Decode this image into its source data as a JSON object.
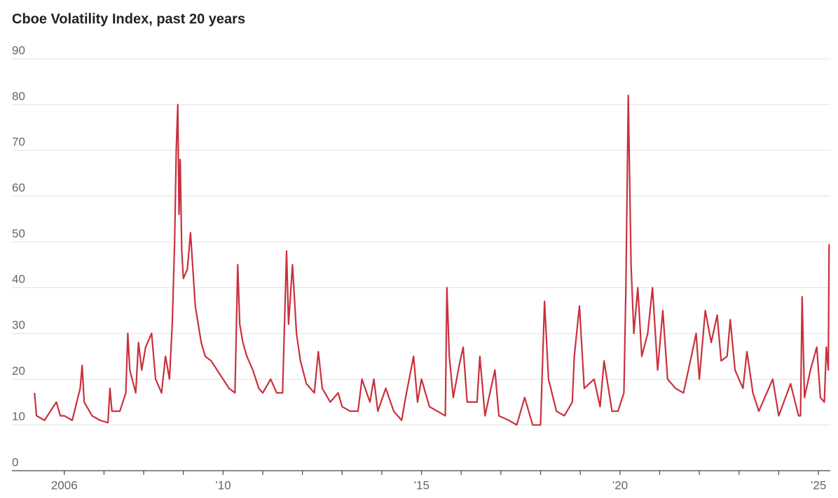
{
  "chart_data": {
    "type": "line",
    "title": "Cboe Volatility Index, past 20 years",
    "x": [
      2005.25,
      2005.3,
      2005.5,
      2005.8,
      2005.9,
      2006.0,
      2006.2,
      2006.4,
      2006.45,
      2006.5,
      2006.7,
      2006.9,
      2007.1,
      2007.15,
      2007.2,
      2007.4,
      2007.55,
      2007.6,
      2007.65,
      2007.8,
      2007.87,
      2007.95,
      2008.05,
      2008.2,
      2008.3,
      2008.45,
      2008.55,
      2008.65,
      2008.72,
      2008.78,
      2008.82,
      2008.86,
      2008.89,
      2008.92,
      2008.96,
      2009.0,
      2009.1,
      2009.18,
      2009.3,
      2009.45,
      2009.55,
      2009.7,
      2009.85,
      2010.0,
      2010.15,
      2010.3,
      2010.37,
      2010.42,
      2010.5,
      2010.6,
      2010.75,
      2010.9,
      2011.0,
      2011.2,
      2011.35,
      2011.5,
      2011.6,
      2011.65,
      2011.75,
      2011.85,
      2011.95,
      2012.1,
      2012.3,
      2012.4,
      2012.5,
      2012.7,
      2012.9,
      2013.0,
      2013.2,
      2013.4,
      2013.5,
      2013.7,
      2013.8,
      2013.9,
      2014.1,
      2014.3,
      2014.5,
      2014.6,
      2014.8,
      2014.9,
      2015.0,
      2015.2,
      2015.4,
      2015.6,
      2015.64,
      2015.7,
      2015.8,
      2015.95,
      2016.05,
      2016.15,
      2016.4,
      2016.47,
      2016.6,
      2016.85,
      2016.95,
      2017.2,
      2017.4,
      2017.6,
      2017.8,
      2018.0,
      2018.1,
      2018.2,
      2018.4,
      2018.6,
      2018.8,
      2018.85,
      2018.98,
      2019.1,
      2019.35,
      2019.5,
      2019.6,
      2019.8,
      2019.95,
      2020.1,
      2020.15,
      2020.21,
      2020.28,
      2020.35,
      2020.45,
      2020.55,
      2020.7,
      2020.82,
      2020.95,
      2021.08,
      2021.2,
      2021.4,
      2021.6,
      2021.8,
      2021.92,
      2022.0,
      2022.15,
      2022.3,
      2022.45,
      2022.55,
      2022.7,
      2022.78,
      2022.9,
      2023.1,
      2023.2,
      2023.35,
      2023.5,
      2023.7,
      2023.85,
      2024.0,
      2024.3,
      2024.5,
      2024.55,
      2024.59,
      2024.65,
      2024.8,
      2024.96,
      2025.05,
      2025.15,
      2025.2,
      2025.25,
      2025.27
    ],
    "series": [
      {
        "color": "#c9313c",
        "values": [
          17,
          12,
          11,
          15,
          12,
          12,
          11,
          18,
          23,
          15,
          12,
          11,
          10.5,
          18,
          13,
          13,
          17,
          30,
          22,
          17,
          28,
          22,
          27,
          30,
          20,
          17,
          25,
          20,
          32,
          50,
          70,
          80,
          56,
          68,
          48,
          42,
          44,
          52,
          36,
          28,
          25,
          24,
          22,
          20,
          18,
          17,
          45,
          32,
          28,
          25,
          22,
          18,
          17,
          20,
          17,
          17,
          48,
          32,
          45,
          30,
          24,
          19,
          17,
          26,
          18,
          15,
          17,
          14,
          13,
          13,
          20,
          15,
          20,
          13,
          18,
          13,
          11,
          16,
          25,
          15,
          20,
          14,
          13,
          12,
          40,
          25,
          16,
          23,
          27,
          15,
          15,
          25,
          12,
          22,
          12,
          11,
          10,
          16,
          10,
          10,
          37,
          20,
          13,
          12,
          15,
          25,
          36,
          18,
          20,
          14,
          24,
          13,
          13,
          17,
          40,
          82,
          45,
          30,
          40,
          25,
          30,
          40,
          22,
          35,
          20,
          18,
          17,
          25,
          30,
          20,
          35,
          28,
          34,
          24,
          25,
          33,
          22,
          18,
          26,
          17,
          13,
          17,
          20,
          12,
          19,
          12,
          12,
          38,
          16,
          22,
          27,
          16,
          15,
          27,
          22,
          49.5
        ]
      }
    ],
    "xlim": [
      2004.68,
      2025.3
    ],
    "xticks": [
      2006,
      {
        "value": 2007,
        "label": null
      },
      {
        "value": 2008,
        "label": null
      },
      {
        "value": 2009,
        "label": null
      },
      {
        "value": 2010,
        "label": "’10"
      },
      {
        "value": 2011,
        "label": null
      },
      {
        "value": 2012,
        "label": null
      },
      {
        "value": 2013,
        "label": null
      },
      {
        "value": 2014,
        "label": null
      },
      {
        "value": 2015,
        "label": "’15"
      },
      {
        "value": 2016,
        "label": null
      },
      {
        "value": 2017,
        "label": null
      },
      {
        "value": 2018,
        "label": null
      },
      {
        "value": 2019,
        "label": null
      },
      {
        "value": 2020,
        "label": "’20"
      },
      {
        "value": 2021,
        "label": null
      },
      {
        "value": 2022,
        "label": null
      },
      {
        "value": 2023,
        "label": null
      },
      {
        "value": 2024,
        "label": null
      },
      {
        "value": 2025,
        "label": "’25"
      }
    ],
    "ylim": [
      0,
      90
    ],
    "yticks": [
      0,
      10,
      20,
      30,
      40,
      50,
      60,
      70,
      80,
      90
    ],
    "grid": true
  }
}
